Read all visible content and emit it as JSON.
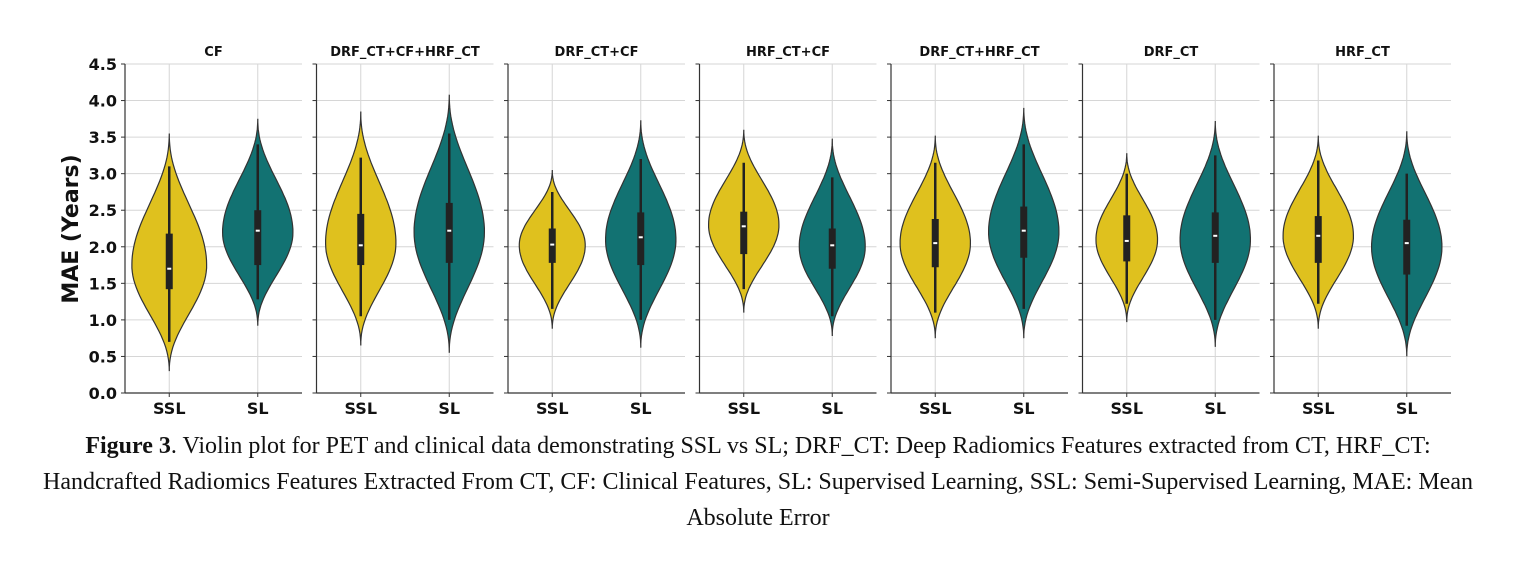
{
  "chart_data": {
    "type": "violin",
    "ylabel": "MAE (Years)",
    "ylim": [
      0,
      4.5
    ],
    "yticks": [
      "0.0",
      "0.5",
      "1.0",
      "1.5",
      "2.0",
      "2.5",
      "3.0",
      "3.5",
      "4.0",
      "4.5"
    ],
    "grid": true,
    "colors": {
      "SSL": "#DFC11E",
      "SL": "#127272",
      "outline": "#333333"
    },
    "categories": [
      "SSL",
      "SL"
    ],
    "panels": [
      {
        "title": "CF",
        "violins": [
          {
            "group": "SSL",
            "min": 0.3,
            "max": 3.55,
            "q1": 1.42,
            "median": 1.7,
            "q3": 2.18,
            "whisker_low": 0.7,
            "whisker_high": 3.1,
            "mode": 1.75,
            "width": 0.85
          },
          {
            "group": "SL",
            "min": 0.92,
            "max": 3.75,
            "q1": 1.75,
            "median": 2.22,
            "q3": 2.5,
            "whisker_low": 1.28,
            "whisker_high": 3.4,
            "mode": 2.2,
            "width": 0.8
          }
        ]
      },
      {
        "title": "DRF_CT+CF+HRF_CT",
        "violins": [
          {
            "group": "SSL",
            "min": 0.65,
            "max": 3.85,
            "q1": 1.75,
            "median": 2.02,
            "q3": 2.45,
            "whisker_low": 1.05,
            "whisker_high": 3.22,
            "mode": 2.05,
            "width": 0.8
          },
          {
            "group": "SL",
            "min": 0.55,
            "max": 4.08,
            "q1": 1.78,
            "median": 2.22,
            "q3": 2.6,
            "whisker_low": 1.0,
            "whisker_high": 3.55,
            "mode": 2.2,
            "width": 0.8
          }
        ]
      },
      {
        "title": "DRF_CT+CF",
        "violins": [
          {
            "group": "SSL",
            "min": 0.88,
            "max": 3.05,
            "q1": 1.78,
            "median": 2.03,
            "q3": 2.25,
            "whisker_low": 1.15,
            "whisker_high": 2.75,
            "mode": 2.02,
            "width": 0.75
          },
          {
            "group": "SL",
            "min": 0.62,
            "max": 3.73,
            "q1": 1.75,
            "median": 2.13,
            "q3": 2.47,
            "whisker_low": 1.0,
            "whisker_high": 3.2,
            "mode": 2.1,
            "width": 0.8
          }
        ]
      },
      {
        "title": "HRF_CT+CF",
        "violins": [
          {
            "group": "SSL",
            "min": 1.1,
            "max": 3.6,
            "q1": 1.9,
            "median": 2.28,
            "q3": 2.48,
            "whisker_low": 1.42,
            "whisker_high": 3.15,
            "mode": 2.3,
            "width": 0.8
          },
          {
            "group": "SL",
            "min": 0.78,
            "max": 3.48,
            "q1": 1.7,
            "median": 2.02,
            "q3": 2.25,
            "whisker_low": 1.05,
            "whisker_high": 2.95,
            "mode": 2.0,
            "width": 0.75
          }
        ]
      },
      {
        "title": "DRF_CT+HRF_CT",
        "violins": [
          {
            "group": "SSL",
            "min": 0.75,
            "max": 3.52,
            "q1": 1.72,
            "median": 2.05,
            "q3": 2.38,
            "whisker_low": 1.1,
            "whisker_high": 3.15,
            "mode": 2.05,
            "width": 0.8
          },
          {
            "group": "SL",
            "min": 0.75,
            "max": 3.9,
            "q1": 1.85,
            "median": 2.22,
            "q3": 2.55,
            "whisker_low": 1.15,
            "whisker_high": 3.4,
            "mode": 2.2,
            "width": 0.8
          }
        ]
      },
      {
        "title": "DRF_CT",
        "violins": [
          {
            "group": "SSL",
            "min": 0.97,
            "max": 3.28,
            "q1": 1.8,
            "median": 2.08,
            "q3": 2.43,
            "whisker_low": 1.22,
            "whisker_high": 3.0,
            "mode": 2.1,
            "width": 0.7
          },
          {
            "group": "SL",
            "min": 0.63,
            "max": 3.72,
            "q1": 1.78,
            "median": 2.15,
            "q3": 2.47,
            "whisker_low": 1.0,
            "whisker_high": 3.25,
            "mode": 2.1,
            "width": 0.8
          }
        ]
      },
      {
        "title": "HRF_CT",
        "violins": [
          {
            "group": "SSL",
            "min": 0.88,
            "max": 3.52,
            "q1": 1.78,
            "median": 2.15,
            "q3": 2.42,
            "whisker_low": 1.22,
            "whisker_high": 3.18,
            "mode": 2.15,
            "width": 0.8
          },
          {
            "group": "SL",
            "min": 0.5,
            "max": 3.58,
            "q1": 1.62,
            "median": 2.05,
            "q3": 2.37,
            "whisker_low": 0.92,
            "whisker_high": 3.0,
            "mode": 2.0,
            "width": 0.8
          }
        ]
      }
    ]
  },
  "caption": {
    "label": "Figure 3",
    "text": ". Violin plot for PET and clinical data demonstrating SSL vs SL; DRF_CT: Deep Radiomics Features extracted from CT, HRF_CT: Handcrafted Radiomics Features Extracted From CT, CF: Clinical Features, SL: Supervised Learning, SSL: Semi-Supervised Learning, MAE: Mean Absolute Error"
  }
}
